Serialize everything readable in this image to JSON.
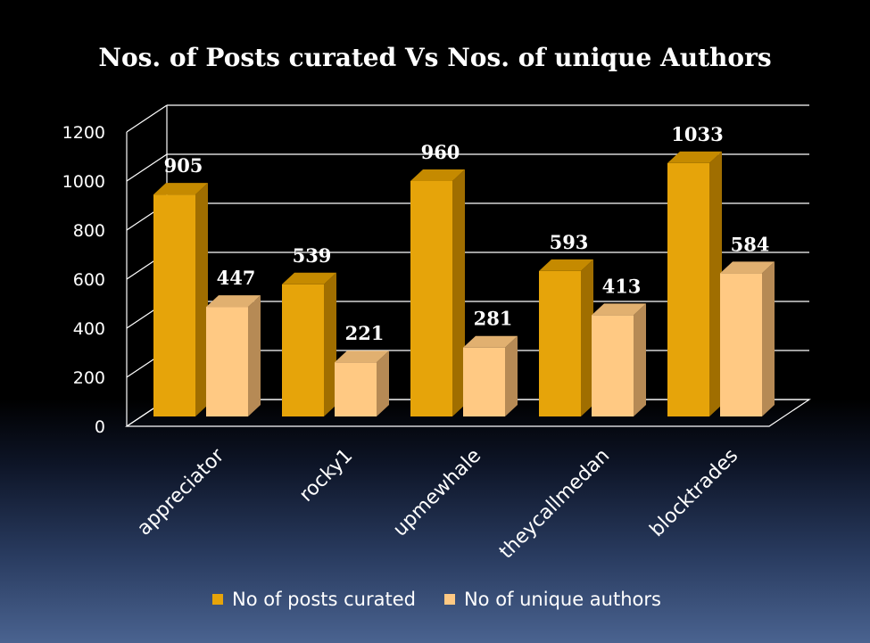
{
  "chart_data": {
    "type": "bar",
    "title": "Nos. of Posts curated Vs Nos. of unique Authors",
    "categories": [
      "appreciator",
      "rocky1",
      "upmewhale",
      "theycallmedan",
      "blocktrades"
    ],
    "series": [
      {
        "name": "No of posts curated",
        "values": [
          905,
          539,
          960,
          593,
          1033
        ],
        "color": "#E6A40A"
      },
      {
        "name": "No of unique authors",
        "values": [
          447,
          221,
          281,
          413,
          584
        ],
        "color": "#FFC983"
      }
    ],
    "ylim": [
      0,
      1200
    ],
    "yticks": [
      "0",
      "200",
      "400",
      "600",
      "800",
      "1000",
      "1200"
    ],
    "grid": true,
    "legend": "bottom",
    "style": "3d-clustered-column"
  }
}
